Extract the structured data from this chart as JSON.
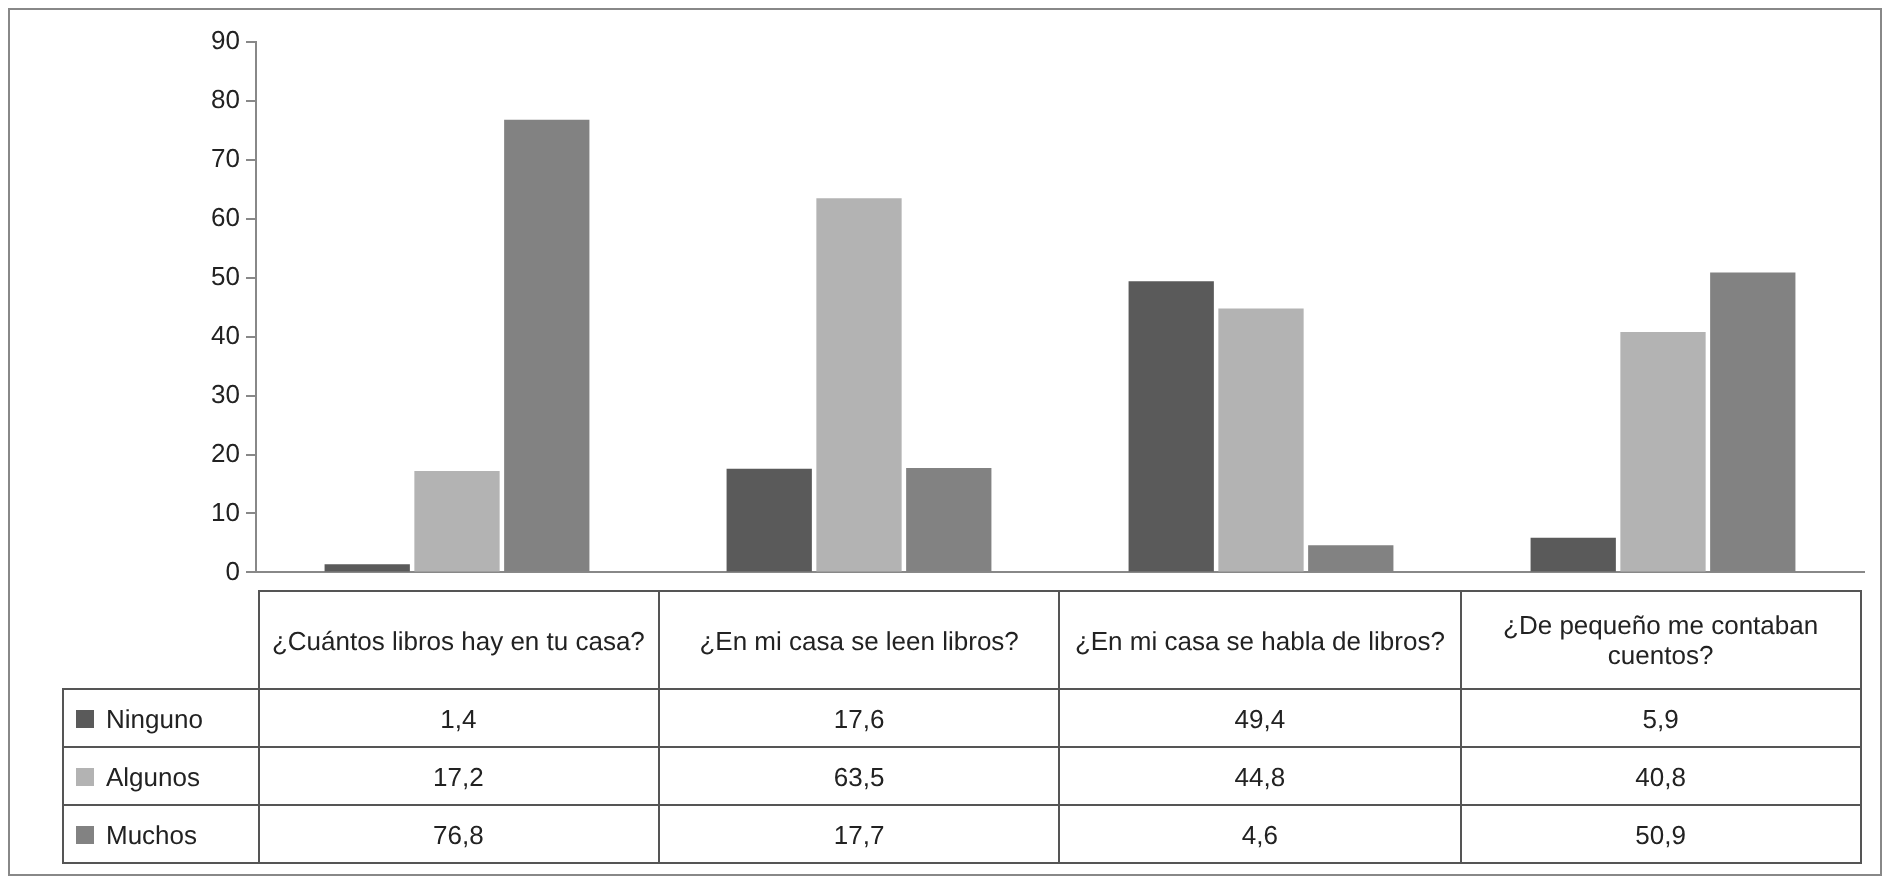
{
  "chart_data": {
    "type": "bar",
    "categories": [
      "¿Cuántos libros hay en tu casa?",
      "¿En mi casa se leen libros?",
      "¿En mi casa se habla de libros?",
      "¿De pequeño me contaban cuentos?"
    ],
    "series": [
      {
        "name": "Ninguno",
        "color": "#5a5a5a",
        "values": [
          1.4,
          17.6,
          49.4,
          5.9
        ],
        "value_labels": [
          "1,4",
          "17,6",
          "49,4",
          "5,9"
        ]
      },
      {
        "name": "Algunos",
        "color": "#b3b3b3",
        "values": [
          17.2,
          63.5,
          44.8,
          40.8
        ],
        "value_labels": [
          "17,2",
          "63,5",
          "44,8",
          "40,8"
        ]
      },
      {
        "name": "Muchos",
        "color": "#828282",
        "values": [
          76.8,
          17.7,
          4.6,
          50.9
        ],
        "value_labels": [
          "76,8",
          "17,7",
          "4,6",
          "50,9"
        ]
      }
    ],
    "ylim": [
      0,
      90
    ],
    "yticks": [
      0,
      10,
      20,
      30,
      40,
      50,
      60,
      70,
      80,
      90
    ],
    "grid": false,
    "legend": "bottom left"
  }
}
